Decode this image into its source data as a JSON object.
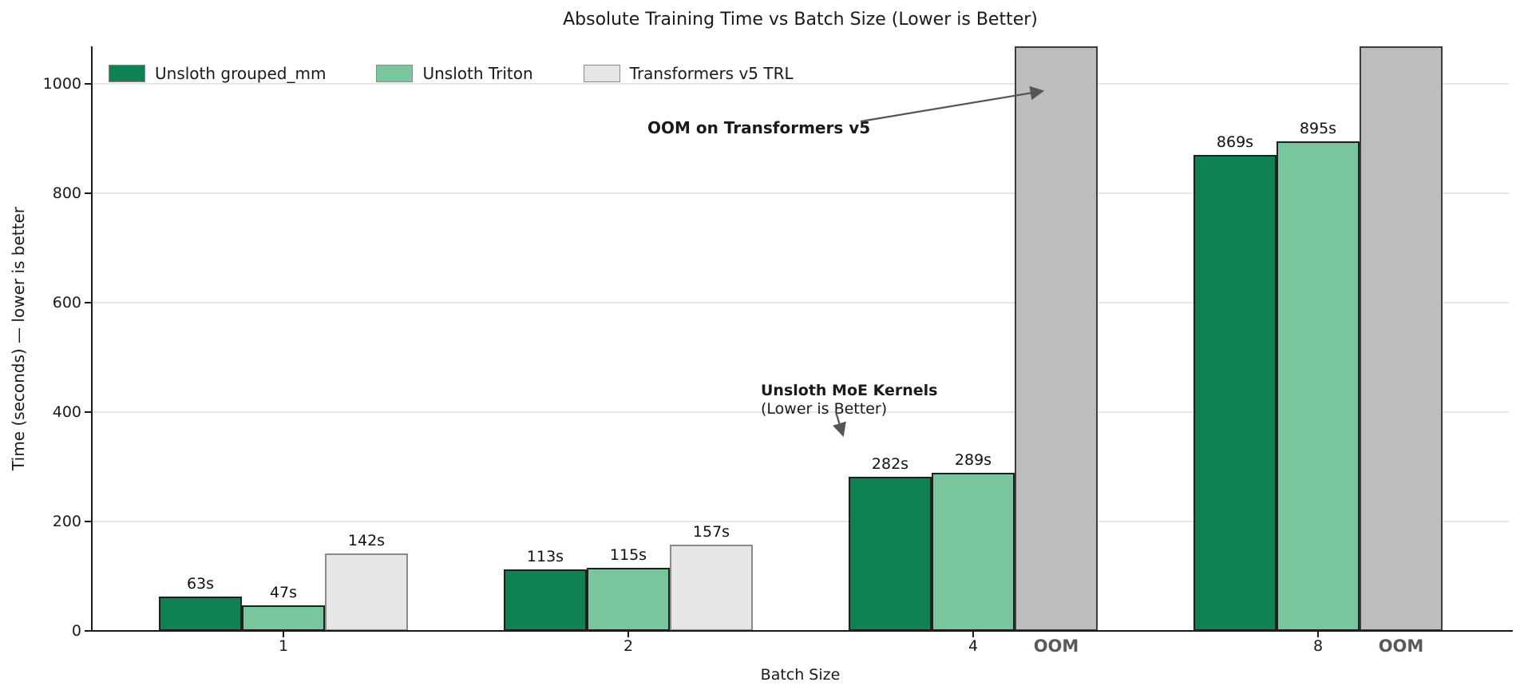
{
  "chart_data": {
    "type": "bar",
    "title": "Absolute Training Time vs Batch Size (Lower is Better)",
    "xlabel": "Batch Size",
    "ylabel": "Time (seconds) — lower is better",
    "categories": [
      "1",
      "2",
      "4",
      "8"
    ],
    "series": [
      {
        "name": "Unsloth grouped_mm",
        "color": "#0f8152",
        "edge_color": "#1f1f1f",
        "values": [
          63,
          113,
          282,
          869
        ],
        "bar_labels": [
          "63s",
          "113s",
          "282s",
          "869s"
        ]
      },
      {
        "name": "Unsloth Triton",
        "color": "#77c69d",
        "edge_color": "#1f1f1f",
        "values": [
          47,
          115,
          289,
          895
        ],
        "bar_labels": [
          "47s",
          "115s",
          "289s",
          "895s"
        ]
      },
      {
        "name": "Transformers v5 TRL",
        "color": "#e6e6e6",
        "edge_color": "#8a8a8a",
        "oom_color": "#bdbdbd",
        "oom_edge_color": "#3d3d3d",
        "values": [
          142,
          157,
          null,
          null
        ],
        "bar_labels": [
          "142s",
          "157s",
          null,
          null
        ]
      }
    ],
    "yticks": [
      0,
      200,
      400,
      600,
      800,
      1000
    ],
    "ylim": [
      0,
      1068
    ],
    "grid": true,
    "legend_position": "upper left",
    "oom_tick_label": "OOM",
    "oom_label_color": "#595959",
    "arrow_color": "#555555",
    "annotations": [
      {
        "id": "oom-note",
        "text": "OOM on Transformers v5"
      },
      {
        "id": "kernels-note",
        "line1": "Unsloth MoE Kernels",
        "line2": "(Lower is Better)"
      }
    ],
    "background": "#ffffff"
  }
}
